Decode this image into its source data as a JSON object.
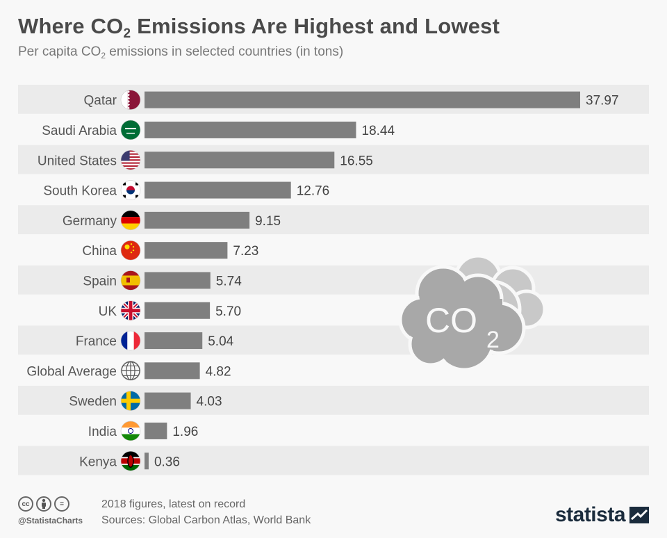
{
  "header": {
    "title_pre": "Where CO",
    "title_sub": "2",
    "title_post": " Emissions Are Highest and Lowest",
    "subtitle_pre": "Per capita CO",
    "subtitle_sub": "2",
    "subtitle_post": " emissions in selected countries (in tons)"
  },
  "chart_data": {
    "type": "bar",
    "orientation": "horizontal",
    "categories": [
      "Qatar",
      "Saudi Arabia",
      "United States",
      "South Korea",
      "Germany",
      "China",
      "Spain",
      "UK",
      "France",
      "Global Average",
      "Sweden",
      "India",
      "Kenya"
    ],
    "values": [
      37.97,
      18.44,
      16.55,
      12.76,
      9.15,
      7.23,
      5.74,
      5.7,
      5.04,
      4.82,
      4.03,
      1.96,
      0.36
    ],
    "labels": [
      "37.97",
      "18.44",
      "16.55",
      "12.76",
      "9.15",
      "7.23",
      "5.74",
      "5.70",
      "5.04",
      "4.82",
      "4.03",
      "1.96",
      "0.36"
    ],
    "flag_icons": [
      "qatar-flag-icon",
      "saudi-arabia-flag-icon",
      "united-states-flag-icon",
      "south-korea-flag-icon",
      "germany-flag-icon",
      "china-flag-icon",
      "spain-flag-icon",
      "uk-flag-icon",
      "france-flag-icon",
      "globe-icon",
      "sweden-flag-icon",
      "india-flag-icon",
      "kenya-flag-icon"
    ],
    "title": "Where CO2 Emissions Are Highest and Lowest",
    "ylabel": "",
    "xlabel": "",
    "xlim": [
      0,
      38
    ],
    "bar_color": "#7f7f7f",
    "row_colors": [
      "#ebebeb",
      "#f8f8f8"
    ],
    "grid": false,
    "legend": "none"
  },
  "decoration": {
    "cloud_icon": "co2-cloud-icon",
    "cloud_text": "CO",
    "cloud_sub": "2"
  },
  "footer": {
    "note": "2018 figures, latest on record",
    "sources": "Sources: Global Carbon Atlas, World Bank",
    "handle": "@StatistaCharts",
    "cc_icons": [
      "cc-icon",
      "by-icon",
      "nd-icon"
    ],
    "cc_labels": [
      "cc",
      "",
      "="
    ],
    "brand": "statista"
  }
}
